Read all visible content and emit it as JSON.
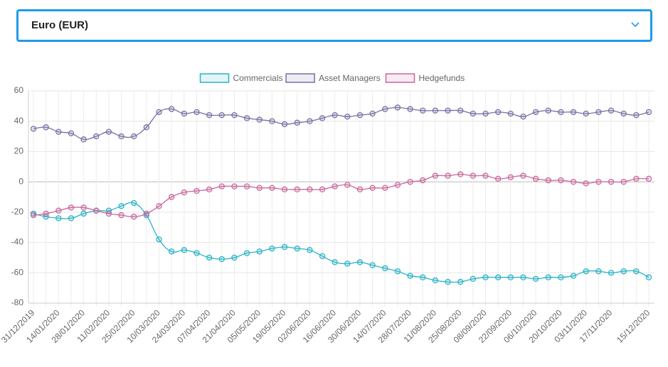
{
  "dropdown": {
    "selected": "Euro (EUR)"
  },
  "chart_data": {
    "type": "line",
    "categories": [
      "31/12/2019",
      null,
      "14/01/2020",
      null,
      "28/01/2020",
      null,
      "11/02/2020",
      null,
      "25/02/2020",
      null,
      "10/03/2020",
      null,
      "24/03/2020",
      null,
      "07/04/2020",
      null,
      "21/04/2020",
      null,
      "05/05/2020",
      null,
      "19/05/2020",
      null,
      "02/06/2020",
      null,
      "16/06/2020",
      null,
      "30/06/2020",
      null,
      "14/07/2020",
      null,
      "28/07/2020",
      null,
      "11/08/2020",
      null,
      "25/08/2020",
      null,
      "08/09/2020",
      null,
      "22/09/2020",
      null,
      "06/10/2020",
      null,
      "20/10/2020",
      null,
      "03/11/2020",
      null,
      "17/11/2020",
      null,
      null,
      "15/12/2020"
    ],
    "series": [
      {
        "name": "Commercials",
        "color": "#2ab3c6",
        "values": [
          -21,
          -23,
          -24,
          -24,
          -21,
          -19,
          -19,
          -16,
          -14,
          -22,
          -38,
          -46,
          -45,
          -47,
          -50,
          -51,
          -50,
          -47,
          -46,
          -44,
          -43,
          -44,
          -45,
          -49,
          -53,
          -54,
          -53,
          -55,
          -57,
          -59,
          -62,
          -63,
          -65,
          -66,
          -66,
          -64,
          -63,
          -63,
          -63,
          -63,
          -64,
          -63,
          -63,
          -62,
          -59,
          -59,
          -60,
          -59,
          -59,
          -63
        ]
      },
      {
        "name": "Asset Managers",
        "color": "#7a6fa3",
        "values": [
          35,
          36,
          33,
          32,
          28,
          30,
          33,
          30,
          30,
          36,
          46,
          48,
          45,
          46,
          44,
          44,
          44,
          42,
          41,
          40,
          38,
          39,
          40,
          42,
          44,
          43,
          44,
          45,
          48,
          49,
          48,
          47,
          47,
          47,
          47,
          45,
          45,
          46,
          45,
          43,
          46,
          47,
          46,
          46,
          45,
          46,
          47,
          45,
          44,
          46
        ]
      },
      {
        "name": "Hedgefunds",
        "color": "#c9679d",
        "values": [
          -22,
          -21,
          -19,
          -17,
          -17,
          -19,
          -21,
          -22,
          -23,
          -21,
          -16,
          -10,
          -7,
          -6,
          -5,
          -3,
          -3,
          -3,
          -4,
          -4,
          -5,
          -5,
          -5,
          -5,
          -3,
          -2,
          -5,
          -4,
          -4,
          -2,
          0,
          1,
          4,
          4,
          5,
          4,
          4,
          2,
          3,
          4,
          2,
          1,
          1,
          0,
          -1,
          0,
          0,
          0,
          2,
          2
        ]
      }
    ],
    "ylim": [
      -80,
      60
    ],
    "yticks": [
      -80,
      -60,
      -40,
      -20,
      0,
      20,
      40,
      60
    ],
    "grid": true,
    "legend": "top"
  }
}
